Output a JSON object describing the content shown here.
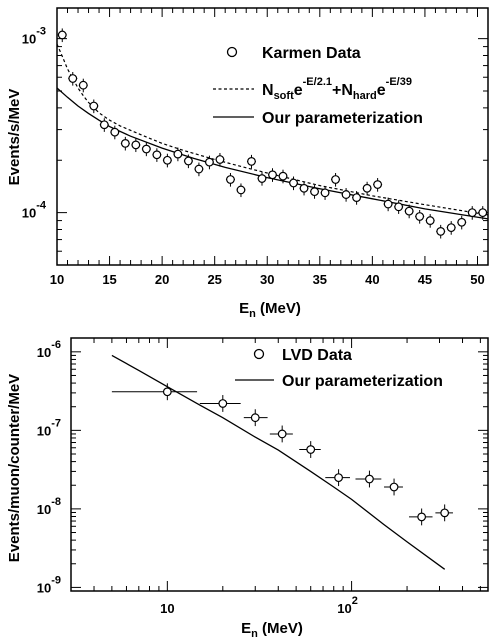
{
  "chart_data": [
    {
      "type": "scatter",
      "title": "",
      "xlabel": "E",
      "xlabel_sub": "n",
      "xlabel_unit": " (MeV)",
      "ylabel": "Events/s/MeV",
      "x_scale": "linear",
      "y_scale": "log",
      "xlim": [
        10,
        51
      ],
      "ylim": [
        5e-05,
        0.0015
      ],
      "x_ticks": [
        "10",
        "15",
        "20",
        "25",
        "30",
        "35",
        "40",
        "45",
        "50"
      ],
      "y_ticks": [
        {
          "base": "10",
          "exp": "-3",
          "value": 0.001
        },
        {
          "base": "10",
          "exp": "-4",
          "value": 0.0001
        }
      ],
      "legend_position": "top-right",
      "legend": {
        "data": "Karmen Data",
        "fit_part1": "N",
        "fit_sub1": "soft",
        "fit_e1": "e",
        "fit_sup1": "-E/2.1",
        "fit_plus": "+N",
        "fit_sub2": "hard",
        "fit_e2": "e",
        "fit_sup2": "-E/39",
        "param": "Our parameterization"
      },
      "series": [
        {
          "style": "markers-open-circle",
          "points": [
            [
              10.5,
              0.00105
            ],
            [
              11.5,
              0.00059
            ],
            [
              12.5,
              0.00054
            ],
            [
              13.5,
              0.00041
            ],
            [
              14.5,
              0.00032
            ],
            [
              15.5,
              0.00029
            ],
            [
              16.5,
              0.00025
            ],
            [
              17.5,
              0.000245
            ],
            [
              18.5,
              0.000232
            ],
            [
              19.5,
              0.000215
            ],
            [
              20.5,
              0.0002
            ],
            [
              21.5,
              0.000217
            ],
            [
              22.5,
              0.000198
            ],
            [
              23.5,
              0.000178
            ],
            [
              24.5,
              0.000195
            ],
            [
              25.5,
              0.000202
            ],
            [
              26.5,
              0.000155
            ],
            [
              27.5,
              0.000135
            ],
            [
              28.5,
              0.000197
            ],
            [
              29.5,
              0.000157
            ],
            [
              30.5,
              0.000165
            ],
            [
              31.5,
              0.000162
            ],
            [
              32.5,
              0.000148
            ],
            [
              33.5,
              0.000138
            ],
            [
              34.5,
              0.000132
            ],
            [
              35.5,
              0.00013
            ],
            [
              36.5,
              0.000155
            ],
            [
              37.5,
              0.000127
            ],
            [
              38.5,
              0.000122
            ],
            [
              39.5,
              0.000138
            ],
            [
              40.5,
              0.000145
            ],
            [
              41.5,
              0.000112
            ],
            [
              42.5,
              0.000108
            ],
            [
              43.5,
              0.000102
            ],
            [
              44.5,
              9.5e-05
            ],
            [
              45.5,
              9e-05
            ],
            [
              46.5,
              7.8e-05
            ],
            [
              47.5,
              8.2e-05
            ],
            [
              48.5,
              8.8e-05
            ],
            [
              49.5,
              0.0001
            ],
            [
              50.5,
              0.0001
            ]
          ]
        },
        {
          "style": "dashed-line",
          "x": [
            10,
            10.5,
            11,
            11.5,
            12,
            12.5,
            13,
            14,
            15,
            16,
            18,
            20,
            22,
            25,
            28,
            30,
            35,
            40,
            45,
            51
          ],
          "y": [
            0.00093,
            0.00079,
            0.00067,
            0.00059,
            0.00052,
            0.00047,
            0.00043,
            0.000375,
            0.00034,
            0.000315,
            0.00028,
            0.00025,
            0.000228,
            0.000202,
            0.000181,
            0.000169,
            0.000143,
            0.000125,
            0.000111,
            9.7e-05
          ]
        },
        {
          "style": "solid-line",
          "x": [
            10,
            11,
            12,
            13,
            14,
            15,
            17,
            20,
            23,
            26,
            30,
            35,
            40,
            45,
            51
          ],
          "y": [
            0.00052,
            0.00046,
            0.00041,
            0.000372,
            0.00034,
            0.000312,
            0.000275,
            0.000235,
            0.000205,
            0.000182,
            0.000159,
            0.000137,
            0.00012,
            0.000105,
            9.2e-05
          ]
        }
      ]
    },
    {
      "type": "scatter",
      "title": "",
      "xlabel": "E",
      "xlabel_sub": "n",
      "xlabel_unit": " (MeV)",
      "ylabel": "Events/muon/counter/MeV",
      "x_scale": "log",
      "y_scale": "log",
      "xlim": [
        3,
        550
      ],
      "ylim": [
        9e-10,
        1.5e-06
      ],
      "x_ticks": [
        {
          "base": "10",
          "exp": "",
          "value": 10
        },
        {
          "base": "10",
          "exp": "2",
          "value": 100
        }
      ],
      "y_ticks": [
        {
          "base": "10",
          "exp": "-6",
          "value": 1e-06
        },
        {
          "base": "10",
          "exp": "-7",
          "value": 1e-07
        },
        {
          "base": "10",
          "exp": "-8",
          "value": 1e-08
        },
        {
          "base": "10",
          "exp": "-9",
          "value": 1e-09
        }
      ],
      "legend_position": "top-right",
      "legend": {
        "data": "LVD Data",
        "param": "Our parameterization"
      },
      "series": [
        {
          "style": "markers-open-circle-xerr",
          "points": [
            {
              "x": 10,
              "y": 3.1e-07,
              "xlo": 5,
              "xhi": 14.5
            },
            {
              "x": 20,
              "y": 2.2e-07,
              "xlo": 15,
              "xhi": 25
            },
            {
              "x": 30,
              "y": 1.45e-07,
              "xlo": 26,
              "xhi": 35
            },
            {
              "x": 42,
              "y": 9e-08,
              "xlo": 36,
              "xhi": 48
            },
            {
              "x": 60,
              "y": 5.7e-08,
              "xlo": 52,
              "xhi": 68
            },
            {
              "x": 85,
              "y": 2.5e-08,
              "xlo": 72,
              "xhi": 98
            },
            {
              "x": 125,
              "y": 2.4e-08,
              "xlo": 105,
              "xhi": 145
            },
            {
              "x": 170,
              "y": 1.9e-08,
              "xlo": 150,
              "xhi": 190
            },
            {
              "x": 240,
              "y": 7.9e-09,
              "xlo": 205,
              "xhi": 275
            },
            {
              "x": 320,
              "y": 8.9e-09,
              "xlo": 285,
              "xhi": 355
            }
          ]
        },
        {
          "style": "solid-line",
          "x": [
            5,
            7,
            10,
            15,
            20,
            30,
            40,
            60,
            80,
            100,
            150,
            200,
            320
          ],
          "y": [
            9e-07,
            5.8e-07,
            3.6e-07,
            2.1e-07,
            1.45e-07,
            8.2e-08,
            5.6e-08,
            3e-08,
            1.9e-08,
            1.32e-08,
            6.3e-09,
            3.8e-09,
            1.7e-09
          ]
        }
      ]
    }
  ]
}
